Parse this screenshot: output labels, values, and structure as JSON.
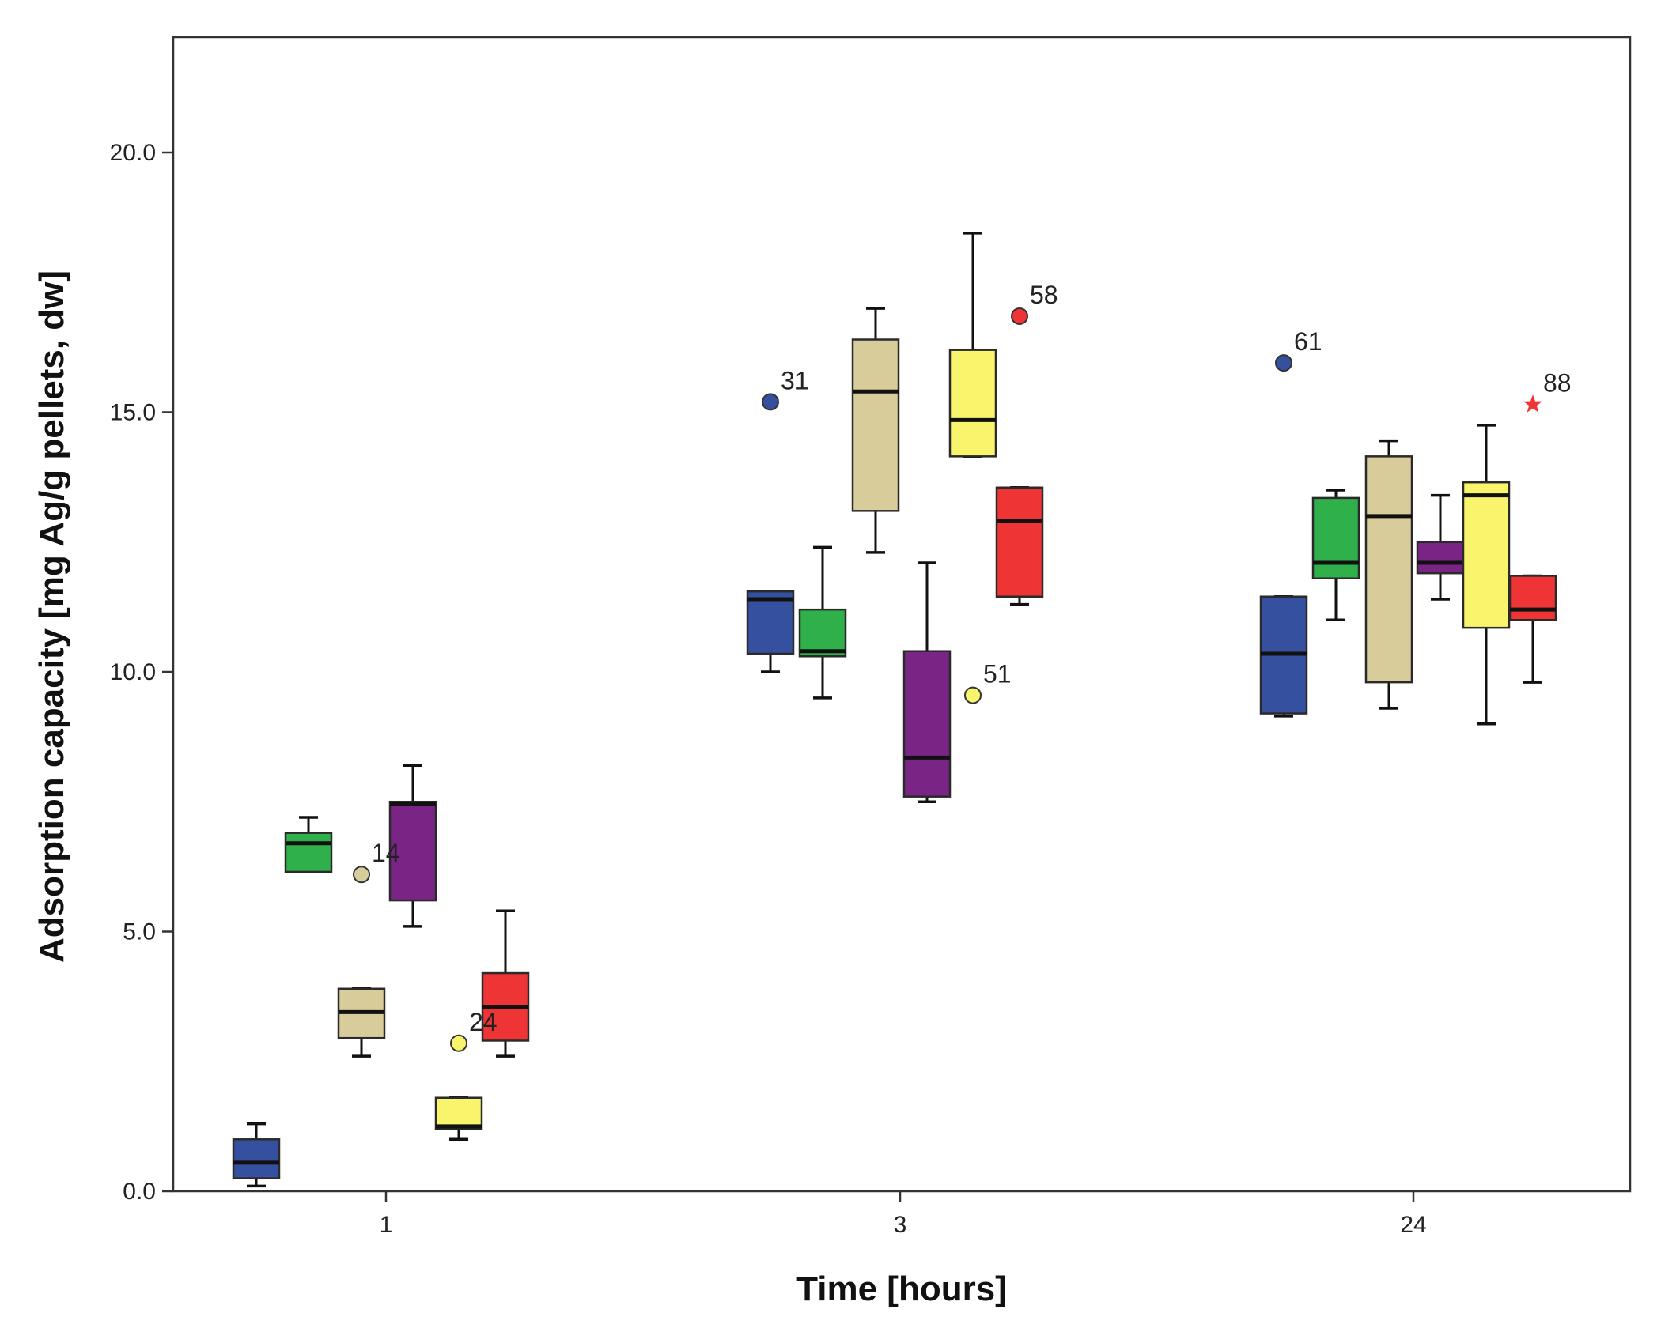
{
  "chart_data": {
    "type": "boxplot",
    "title": "",
    "xlabel": "Time [hours]",
    "ylabel": "Adsorption capacity [mg Ag/g pellets, dw]",
    "ylim": [
      0,
      22
    ],
    "y_ticks": [
      {
        "value": 0,
        "label": "0.0"
      },
      {
        "value": 5,
        "label": "5.0"
      },
      {
        "value": 10,
        "label": "10.0"
      },
      {
        "value": 15,
        "label": "15.0"
      },
      {
        "value": 20,
        "label": "20.0"
      }
    ],
    "categories": [
      "1",
      "3",
      "24"
    ],
    "grid": false,
    "series_colors": [
      "#3650a0",
      "#2fb04a",
      "#d8cc9a",
      "#7a2585",
      "#f8f56c",
      "#ee3434"
    ],
    "groups": [
      {
        "category": "1",
        "boxes": [
          {
            "color": "#3650a0",
            "whisker_low": 0.1,
            "q1": 0.25,
            "median": 0.55,
            "q3": 1.0,
            "whisker_high": 1.3,
            "outliers": []
          },
          {
            "color": "#2fb04a",
            "whisker_low": 6.15,
            "q1": 6.15,
            "median": 6.7,
            "q3": 6.9,
            "whisker_high": 7.2,
            "outliers": []
          },
          {
            "color": "#d8cc9a",
            "whisker_low": 2.6,
            "q1": 2.95,
            "median": 3.45,
            "q3": 3.9,
            "whisker_high": 3.9,
            "outliers": [
              {
                "value": 6.1,
                "label": "14",
                "marker": "circle"
              }
            ]
          },
          {
            "color": "#7a2585",
            "whisker_low": 5.1,
            "q1": 5.6,
            "median": 7.45,
            "q3": 7.5,
            "whisker_high": 8.2,
            "outliers": []
          },
          {
            "color": "#f8f56c",
            "whisker_low": 1.0,
            "q1": 1.2,
            "median": 1.25,
            "q3": 1.8,
            "whisker_high": 1.8,
            "outliers": [
              {
                "value": 2.85,
                "label": "24",
                "marker": "circle"
              }
            ]
          },
          {
            "color": "#ee3434",
            "whisker_low": 2.6,
            "q1": 2.9,
            "median": 3.55,
            "q3": 4.2,
            "whisker_high": 5.4,
            "outliers": []
          }
        ]
      },
      {
        "category": "3",
        "boxes": [
          {
            "color": "#3650a0",
            "whisker_low": 10.0,
            "q1": 10.35,
            "median": 11.4,
            "q3": 11.55,
            "whisker_high": 11.55,
            "outliers": [
              {
                "value": 15.2,
                "label": "31",
                "marker": "circle"
              }
            ]
          },
          {
            "color": "#2fb04a",
            "whisker_low": 9.5,
            "q1": 10.3,
            "median": 10.4,
            "q3": 11.2,
            "whisker_high": 12.4,
            "outliers": []
          },
          {
            "color": "#d8cc9a",
            "whisker_low": 12.3,
            "q1": 13.1,
            "median": 15.4,
            "q3": 16.4,
            "whisker_high": 17.0,
            "outliers": []
          },
          {
            "color": "#7a2585",
            "whisker_low": 7.5,
            "q1": 7.6,
            "median": 8.35,
            "q3": 10.4,
            "whisker_high": 12.1,
            "outliers": []
          },
          {
            "color": "#f8f56c",
            "whisker_low": 14.15,
            "q1": 14.15,
            "median": 14.85,
            "q3": 16.2,
            "whisker_high": 18.45,
            "outliers": [
              {
                "value": 9.55,
                "label": "51",
                "marker": "circle"
              }
            ]
          },
          {
            "color": "#ee3434",
            "whisker_low": 11.3,
            "q1": 11.45,
            "median": 12.9,
            "q3": 13.55,
            "whisker_high": 13.55,
            "outliers": [
              {
                "value": 16.85,
                "label": "58",
                "marker": "circle"
              }
            ]
          }
        ]
      },
      {
        "category": "24",
        "boxes": [
          {
            "color": "#3650a0",
            "whisker_low": 9.15,
            "q1": 9.2,
            "median": 10.35,
            "q3": 11.45,
            "whisker_high": 11.45,
            "outliers": [
              {
                "value": 15.95,
                "label": "61",
                "marker": "circle"
              }
            ]
          },
          {
            "color": "#2fb04a",
            "whisker_low": 11.0,
            "q1": 11.8,
            "median": 12.1,
            "q3": 13.35,
            "whisker_high": 13.5,
            "outliers": []
          },
          {
            "color": "#d8cc9a",
            "whisker_low": 9.3,
            "q1": 9.8,
            "median": 13.0,
            "q3": 14.15,
            "whisker_high": 14.45,
            "outliers": []
          },
          {
            "color": "#7a2585",
            "whisker_low": 11.4,
            "q1": 11.9,
            "median": 12.1,
            "q3": 12.5,
            "whisker_high": 13.4,
            "outliers": []
          },
          {
            "color": "#f8f56c",
            "whisker_low": 9.0,
            "q1": 10.85,
            "median": 13.4,
            "q3": 13.65,
            "whisker_high": 14.75,
            "outliers": []
          },
          {
            "color": "#ee3434",
            "whisker_low": 9.8,
            "q1": 11.0,
            "median": 11.2,
            "q3": 11.85,
            "whisker_high": 11.85,
            "outliers": [
              {
                "value": 15.15,
                "label": "88",
                "marker": "star"
              }
            ]
          }
        ]
      }
    ]
  }
}
